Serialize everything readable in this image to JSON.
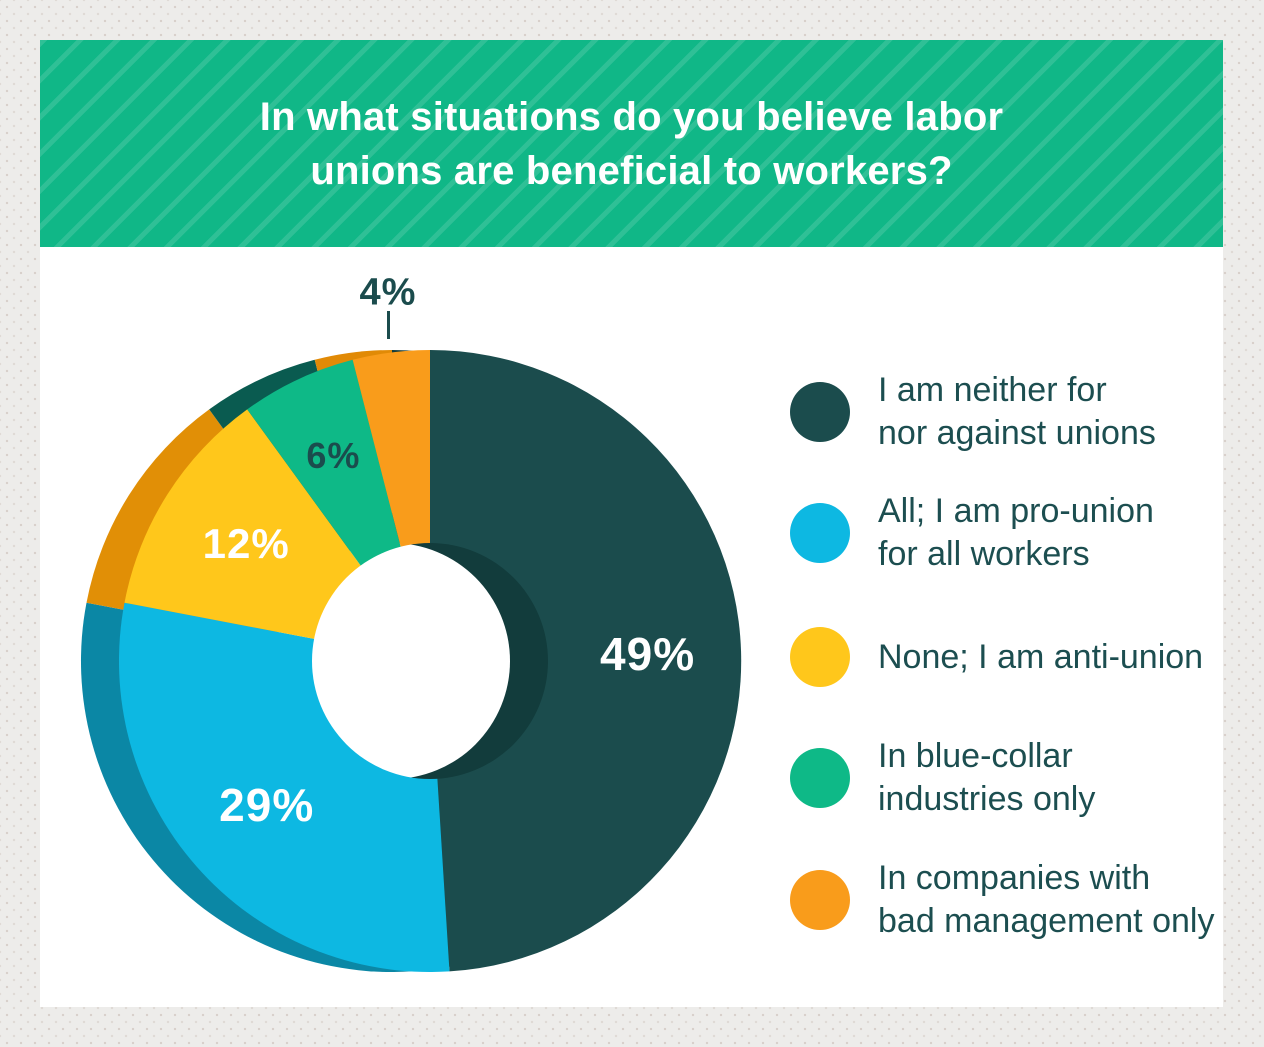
{
  "frame": {
    "background": "#EDECEA",
    "panel_background": "#FFFFFF"
  },
  "banner": {
    "background": "#10B787",
    "stripe_color": "rgba(255,255,255,0.13)",
    "title_color": "#FFFFFF",
    "title": "In what situations do you believe labor unions are beneficial to workers?",
    "title_lines": [
      "In what situations do you believe labor",
      "unions are beneficial to workers?"
    ]
  },
  "chart_data": {
    "type": "pie",
    "style": "donut-3d-offset-shadow",
    "title": "In what situations do you believe labor unions are beneficial to workers?",
    "start_angle_deg": 0,
    "direction": "clockwise",
    "donut": true,
    "legend_position": "right",
    "categories": [
      "I am neither for nor against unions",
      "All; I am pro-union for all workers",
      "None; I am anti-union",
      "In blue-collar industries only",
      "In companies with bad management only"
    ],
    "values": [
      49,
      29,
      12,
      6,
      4
    ],
    "slices": [
      {
        "label": "I am neither for nor against unions",
        "value_pct": 49,
        "value_label": "49%",
        "color": "#1B4C4D",
        "shadow_color": "#123C3C",
        "pct_label_color": "#FFFFFF",
        "pct_label_placement": "inside"
      },
      {
        "label": "All; I am pro-union for all workers",
        "value_pct": 29,
        "value_label": "29%",
        "color": "#0DB8E2",
        "shadow_color": "#0B87A5",
        "pct_label_color": "#FFFFFF",
        "pct_label_placement": "inside"
      },
      {
        "label": "None; I am anti-union",
        "value_pct": 12,
        "value_label": "12%",
        "color": "#FFC71B",
        "shadow_color": "#E18F06",
        "pct_label_color": "#FFFFFF",
        "pct_label_placement": "inside"
      },
      {
        "label": "In blue-collar industries only",
        "value_pct": 6,
        "value_label": "6%",
        "color": "#0EB987",
        "shadow_color": "#0A5B50",
        "pct_label_color": "#1B4C4D",
        "pct_label_placement": "inside"
      },
      {
        "label": "In companies with bad management only",
        "value_pct": 4,
        "value_label": "4%",
        "color": "#F99C1B",
        "shadow_color": "#E18A06",
        "pct_label_color": "#1B4C4D",
        "pct_label_placement": "outside-top"
      }
    ],
    "hole_color": "#FFFFFF",
    "leader_line_color": "#1B4C4D"
  },
  "legend": {
    "text_color": "#1C4E50",
    "items": [
      {
        "lines": [
          "I am neither for",
          "nor against unions"
        ]
      },
      {
        "lines": [
          "All; I am pro-union",
          "for all workers"
        ]
      },
      {
        "lines": [
          "None; I am anti-union"
        ]
      },
      {
        "lines": [
          "In blue-collar",
          "industries only"
        ]
      },
      {
        "lines": [
          "In companies with",
          "bad management only"
        ]
      }
    ]
  }
}
